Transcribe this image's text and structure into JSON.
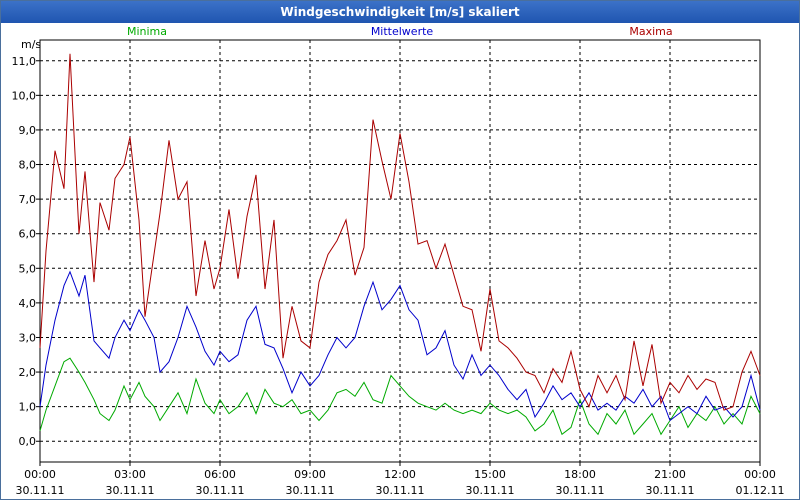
{
  "window": {
    "title": "Windgeschwindigkeit [m/s] skaliert"
  },
  "chart_data": {
    "type": "line",
    "title": "Windgeschwindigkeit [m/s] skaliert",
    "ylabel": "m/s",
    "xlabel": "",
    "ylim": [
      -0.6,
      11.6
    ],
    "xlim": [
      0,
      24
    ],
    "grid": true,
    "y_ticks": [
      "0,0",
      "1,0",
      "2,0",
      "3,0",
      "4,0",
      "5,0",
      "6,0",
      "7,0",
      "8,0",
      "9,0",
      "10,0",
      "11,0"
    ],
    "x_ticks": [
      {
        "time": "00:00",
        "date": "30.11.11"
      },
      {
        "time": "03:00",
        "date": "30.11.11"
      },
      {
        "time": "06:00",
        "date": "30.11.11"
      },
      {
        "time": "09:00",
        "date": "30.11.11"
      },
      {
        "time": "12:00",
        "date": "30.11.11"
      },
      {
        "time": "15:00",
        "date": "30.11.11"
      },
      {
        "time": "18:00",
        "date": "30.11.11"
      },
      {
        "time": "21:00",
        "date": "30.11.11"
      },
      {
        "time": "00:00",
        "date": "01.12.11"
      }
    ],
    "series": [
      {
        "name": "Minima",
        "color": "#00aa00",
        "x": [
          0,
          0.2,
          0.5,
          0.8,
          1.0,
          1.3,
          1.5,
          1.8,
          2.0,
          2.3,
          2.5,
          2.8,
          3.0,
          3.3,
          3.5,
          3.8,
          4.0,
          4.3,
          4.6,
          4.9,
          5.2,
          5.5,
          5.8,
          6.0,
          6.3,
          6.6,
          6.9,
          7.2,
          7.5,
          7.8,
          8.1,
          8.4,
          8.7,
          9.0,
          9.3,
          9.6,
          9.9,
          10.2,
          10.5,
          10.8,
          11.1,
          11.4,
          11.7,
          12.0,
          12.3,
          12.6,
          12.9,
          13.2,
          13.5,
          13.8,
          14.1,
          14.4,
          14.7,
          15.0,
          15.3,
          15.6,
          15.9,
          16.2,
          16.5,
          16.8,
          17.1,
          17.4,
          17.7,
          18.0,
          18.3,
          18.6,
          18.9,
          19.2,
          19.5,
          19.8,
          20.1,
          20.4,
          20.7,
          21.0,
          21.3,
          21.6,
          21.9,
          22.2,
          22.5,
          22.8,
          23.1,
          23.4,
          23.7,
          24.0
        ],
        "values": [
          0.3,
          0.9,
          1.6,
          2.3,
          2.4,
          2.0,
          1.7,
          1.2,
          0.8,
          0.6,
          0.9,
          1.6,
          1.2,
          1.7,
          1.3,
          1.0,
          0.6,
          1.0,
          1.4,
          0.8,
          1.8,
          1.1,
          0.8,
          1.2,
          0.8,
          1.0,
          1.4,
          0.8,
          1.5,
          1.1,
          1.0,
          1.2,
          0.8,
          0.9,
          0.6,
          0.9,
          1.4,
          1.5,
          1.3,
          1.7,
          1.2,
          1.1,
          1.9,
          1.6,
          1.3,
          1.1,
          1.0,
          0.9,
          1.1,
          0.9,
          0.8,
          0.9,
          0.8,
          1.1,
          0.9,
          0.8,
          0.9,
          0.7,
          0.3,
          0.5,
          0.9,
          0.2,
          0.4,
          1.2,
          0.5,
          0.2,
          0.8,
          0.5,
          0.9,
          0.2,
          0.5,
          0.8,
          0.2,
          0.6,
          1.0,
          0.4,
          0.8,
          0.6,
          1.0,
          0.5,
          0.8,
          0.5,
          1.3,
          0.8
        ]
      },
      {
        "name": "Mittelwerte",
        "color": "#0000cc",
        "x": [
          0,
          0.2,
          0.5,
          0.8,
          1.0,
          1.3,
          1.5,
          1.8,
          2.0,
          2.3,
          2.5,
          2.8,
          3.0,
          3.3,
          3.5,
          3.8,
          4.0,
          4.3,
          4.6,
          4.9,
          5.2,
          5.5,
          5.8,
          6.0,
          6.3,
          6.6,
          6.9,
          7.2,
          7.5,
          7.8,
          8.1,
          8.4,
          8.7,
          9.0,
          9.3,
          9.6,
          9.9,
          10.2,
          10.5,
          10.8,
          11.1,
          11.4,
          11.7,
          12.0,
          12.3,
          12.6,
          12.9,
          13.2,
          13.5,
          13.8,
          14.1,
          14.4,
          14.7,
          15.0,
          15.3,
          15.6,
          15.9,
          16.2,
          16.5,
          16.8,
          17.1,
          17.4,
          17.7,
          18.0,
          18.3,
          18.6,
          18.9,
          19.2,
          19.5,
          19.8,
          20.1,
          20.4,
          20.7,
          21.0,
          21.3,
          21.6,
          21.9,
          22.2,
          22.5,
          22.8,
          23.1,
          23.4,
          23.7,
          24.0
        ],
        "values": [
          1.0,
          2.2,
          3.5,
          4.5,
          4.9,
          4.2,
          4.8,
          2.9,
          2.7,
          2.4,
          3.0,
          3.5,
          3.2,
          3.8,
          3.5,
          3.0,
          2.0,
          2.3,
          3.0,
          3.9,
          3.3,
          2.6,
          2.2,
          2.6,
          2.3,
          2.5,
          3.5,
          3.9,
          2.8,
          2.7,
          2.1,
          1.4,
          2.0,
          1.6,
          1.9,
          2.5,
          3.0,
          2.7,
          3.0,
          3.9,
          4.6,
          3.8,
          4.1,
          4.5,
          3.8,
          3.5,
          2.5,
          2.7,
          3.2,
          2.2,
          1.8,
          2.5,
          1.9,
          2.2,
          1.9,
          1.5,
          1.2,
          1.5,
          0.7,
          1.1,
          1.6,
          1.2,
          1.4,
          1.0,
          1.4,
          0.9,
          1.1,
          0.9,
          1.3,
          1.1,
          1.5,
          1.0,
          1.3,
          0.6,
          0.8,
          1.0,
          0.8,
          1.3,
          0.9,
          1.0,
          0.7,
          1.0,
          1.9,
          0.9
        ]
      },
      {
        "name": "Maxima",
        "color": "#aa0000",
        "x": [
          0,
          0.2,
          0.5,
          0.8,
          1.0,
          1.3,
          1.5,
          1.8,
          2.0,
          2.3,
          2.5,
          2.8,
          3.0,
          3.3,
          3.5,
          3.8,
          4.0,
          4.3,
          4.6,
          4.9,
          5.2,
          5.5,
          5.8,
          6.0,
          6.3,
          6.6,
          6.9,
          7.2,
          7.5,
          7.8,
          8.1,
          8.4,
          8.7,
          9.0,
          9.3,
          9.6,
          9.9,
          10.2,
          10.5,
          10.8,
          11.1,
          11.4,
          11.7,
          12.0,
          12.3,
          12.6,
          12.9,
          13.2,
          13.5,
          13.8,
          14.1,
          14.4,
          14.7,
          15.0,
          15.3,
          15.6,
          15.9,
          16.2,
          16.5,
          16.8,
          17.1,
          17.4,
          17.7,
          18.0,
          18.3,
          18.6,
          18.9,
          19.2,
          19.5,
          19.8,
          20.1,
          20.4,
          20.7,
          21.0,
          21.3,
          21.6,
          21.9,
          22.2,
          22.5,
          22.8,
          23.1,
          23.4,
          23.7,
          24.0
        ],
        "values": [
          2.7,
          5.5,
          8.4,
          7.3,
          11.2,
          6.0,
          7.8,
          4.6,
          6.9,
          6.1,
          7.6,
          8.0,
          8.8,
          6.4,
          3.6,
          5.4,
          6.6,
          8.7,
          7.0,
          7.5,
          4.2,
          5.8,
          4.4,
          5.0,
          6.7,
          4.7,
          6.5,
          7.7,
          4.4,
          6.4,
          2.4,
          3.9,
          2.9,
          2.7,
          4.6,
          5.4,
          5.8,
          6.4,
          4.8,
          5.6,
          9.3,
          8.1,
          7.0,
          8.9,
          7.5,
          5.7,
          5.8,
          5.0,
          5.7,
          4.8,
          3.9,
          3.8,
          2.6,
          4.4,
          2.9,
          2.7,
          2.4,
          2.0,
          1.9,
          1.4,
          2.1,
          1.7,
          2.6,
          1.5,
          1.0,
          1.9,
          1.4,
          1.9,
          1.2,
          2.9,
          1.6,
          2.8,
          1.1,
          1.7,
          1.4,
          1.9,
          1.5,
          1.8,
          1.7,
          0.9,
          1.0,
          2.0,
          2.6,
          1.9
        ]
      }
    ]
  }
}
